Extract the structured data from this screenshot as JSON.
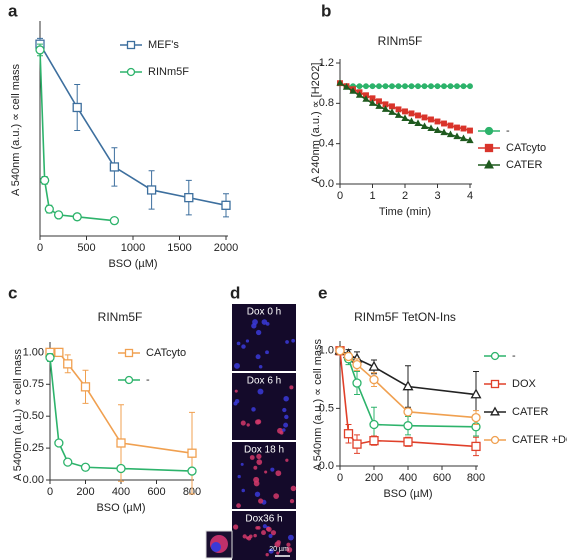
{
  "chart_data": [
    {
      "type": "line",
      "panel": "a",
      "ylabel": "A 540nm (a.u.) ∝ cell mass",
      "xlabel": "BSO (µM)",
      "xlim": [
        0,
        2000
      ],
      "xticks": [
        0,
        500,
        1000,
        1500,
        2000
      ],
      "ylim": [
        0,
        1.1
      ],
      "legend": "upper right",
      "series": [
        {
          "name": "MEF's",
          "color": "#3d6f9e",
          "marker": "square",
          "x": [
            0,
            400,
            800,
            1200,
            1600,
            2000
          ],
          "values": [
            1.0,
            0.67,
            0.36,
            0.24,
            0.2,
            0.16
          ],
          "errors": [
            0.03,
            0.12,
            0.1,
            0.1,
            0.09,
            0.06
          ]
        },
        {
          "name": "RINm5F",
          "color": "#2db36b",
          "marker": "circle",
          "x": [
            0,
            50,
            100,
            200,
            400,
            800
          ],
          "values": [
            0.97,
            0.29,
            0.14,
            0.11,
            0.1,
            0.08
          ],
          "errors": [
            0.03,
            0.02,
            0.02,
            0.01,
            0.01,
            0.01
          ]
        }
      ]
    },
    {
      "type": "line",
      "panel": "b",
      "title": "RINm5F",
      "ylabel": "A 240nm (a.u.) ∝ [H2O2]",
      "xlabel": "Time (min)",
      "xlim": [
        0,
        4
      ],
      "xticks": [
        0,
        1,
        2,
        3,
        4
      ],
      "ylim": [
        0,
        1.2
      ],
      "yticks": [
        {
          "value": 0,
          "label": "0.0"
        },
        0.4,
        0.8,
        1.2
      ],
      "legend": "right",
      "series": [
        {
          "name": "-",
          "color": "#2db36b",
          "marker": "circle",
          "x": [
            0,
            0.2,
            0.4,
            0.6,
            0.8,
            1,
            1.2,
            1.4,
            1.6,
            1.8,
            2,
            2.2,
            2.4,
            2.6,
            2.8,
            3,
            3.2,
            3.4,
            3.6,
            3.8,
            4
          ],
          "values": [
            1.0,
            0.97,
            0.97,
            0.97,
            0.97,
            0.97,
            0.97,
            0.97,
            0.97,
            0.97,
            0.97,
            0.97,
            0.97,
            0.97,
            0.97,
            0.97,
            0.97,
            0.97,
            0.97,
            0.97,
            0.97
          ]
        },
        {
          "name": "CATcyto",
          "color": "#d9342b",
          "marker": "square",
          "x": [
            0,
            0.2,
            0.4,
            0.6,
            0.8,
            1,
            1.2,
            1.4,
            1.6,
            1.8,
            2,
            2.2,
            2.4,
            2.6,
            2.8,
            3,
            3.2,
            3.4,
            3.6,
            3.8,
            4
          ],
          "values": [
            1.0,
            0.97,
            0.94,
            0.91,
            0.88,
            0.85,
            0.82,
            0.79,
            0.77,
            0.74,
            0.72,
            0.7,
            0.68,
            0.66,
            0.64,
            0.62,
            0.6,
            0.58,
            0.56,
            0.55,
            0.53
          ]
        },
        {
          "name": "CATER",
          "color": "#1f5a1f",
          "marker": "triangle",
          "x": [
            0,
            0.2,
            0.4,
            0.6,
            0.8,
            1,
            1.2,
            1.4,
            1.6,
            1.8,
            2,
            2.2,
            2.4,
            2.6,
            2.8,
            3,
            3.2,
            3.4,
            3.6,
            3.8,
            4
          ],
          "values": [
            1.0,
            0.96,
            0.92,
            0.88,
            0.84,
            0.8,
            0.77,
            0.74,
            0.71,
            0.68,
            0.65,
            0.62,
            0.6,
            0.57,
            0.55,
            0.53,
            0.51,
            0.49,
            0.47,
            0.45,
            0.43
          ]
        }
      ]
    },
    {
      "type": "line",
      "panel": "c",
      "title": "RINm5F",
      "ylabel": "A 540nm (a.u.) ∝ cell mass",
      "xlabel": "BSO (µM)",
      "xlim": [
        0,
        800
      ],
      "xticks": [
        0,
        200,
        400,
        600,
        800
      ],
      "ylim": [
        0,
        1.05
      ],
      "yticks": [
        {
          "value": 0,
          "label": "0.00"
        },
        0.25,
        {
          "value": 0.5,
          "label": "0.50"
        },
        0.75,
        {
          "value": 1,
          "label": "1.00"
        }
      ],
      "legend": "upper right",
      "series": [
        {
          "name": "CATcyto",
          "color": "#f0a050",
          "marker": "square",
          "x": [
            0,
            50,
            100,
            200,
            400,
            800
          ],
          "values": [
            1.0,
            1.0,
            0.91,
            0.73,
            0.29,
            0.21
          ],
          "errors": [
            0.03,
            0.03,
            0.07,
            0.13,
            0.3,
            0.32
          ]
        },
        {
          "name": "-",
          "color": "#2db36b",
          "marker": "circle",
          "x": [
            0,
            50,
            100,
            200,
            400,
            800
          ],
          "values": [
            0.96,
            0.29,
            0.14,
            0.1,
            0.09,
            0.07
          ],
          "errors": [
            0.03,
            0.02,
            0.02,
            0.01,
            0.01,
            0.01
          ]
        }
      ]
    },
    {
      "type": "line",
      "panel": "e",
      "title": "RINm5F TetON-Ins",
      "ylabel": "A 540nm (a.u.) ∝ cell mass",
      "xlabel": "BSO (µM)",
      "xlim": [
        0,
        800
      ],
      "xticks": [
        0,
        200,
        400,
        600,
        800
      ],
      "ylim": [
        0,
        1.05
      ],
      "yticks": [
        {
          "value": 0,
          "label": "0.0"
        },
        0.5,
        {
          "value": 1,
          "label": "1.0"
        }
      ],
      "legend": "right",
      "series": [
        {
          "name": "-",
          "color": "#2db36b",
          "marker": "circle",
          "x": [
            0,
            50,
            100,
            200,
            400,
            800
          ],
          "values": [
            1.0,
            0.93,
            0.72,
            0.36,
            0.35,
            0.34
          ],
          "errors": [
            0.02,
            0.05,
            0.1,
            0.15,
            0.08,
            0.08
          ]
        },
        {
          "name": "DOX",
          "color": "#e0402a",
          "marker": "square",
          "x": [
            0,
            50,
            100,
            200,
            400,
            800
          ],
          "values": [
            1.0,
            0.28,
            0.19,
            0.22,
            0.21,
            0.17
          ],
          "errors": [
            0.02,
            0.08,
            0.08,
            0.04,
            0.04,
            0.08
          ]
        },
        {
          "name": "CATER",
          "color": "#222222",
          "marker": "triangle",
          "x": [
            0,
            50,
            100,
            200,
            400,
            800
          ],
          "values": [
            1.0,
            0.97,
            0.93,
            0.86,
            0.69,
            0.62
          ],
          "errors": [
            0.02,
            0.04,
            0.06,
            0.06,
            0.18,
            0.2
          ]
        },
        {
          "name": "CATER +DOX",
          "color": "#f0a050",
          "marker": "circle",
          "x": [
            0,
            50,
            100,
            200,
            400,
            800
          ],
          "values": [
            1.0,
            0.95,
            0.88,
            0.75,
            0.47,
            0.42
          ],
          "errors": [
            0.02,
            0.03,
            0.05,
            0.06,
            0.03,
            0.06
          ]
        }
      ]
    }
  ],
  "panel_d": {
    "panel": "d",
    "images": [
      "Dox 0 h",
      "Dox 6 h",
      "Dox 18 h",
      "Dox36 h"
    ],
    "scale_bar": "20 µm"
  }
}
